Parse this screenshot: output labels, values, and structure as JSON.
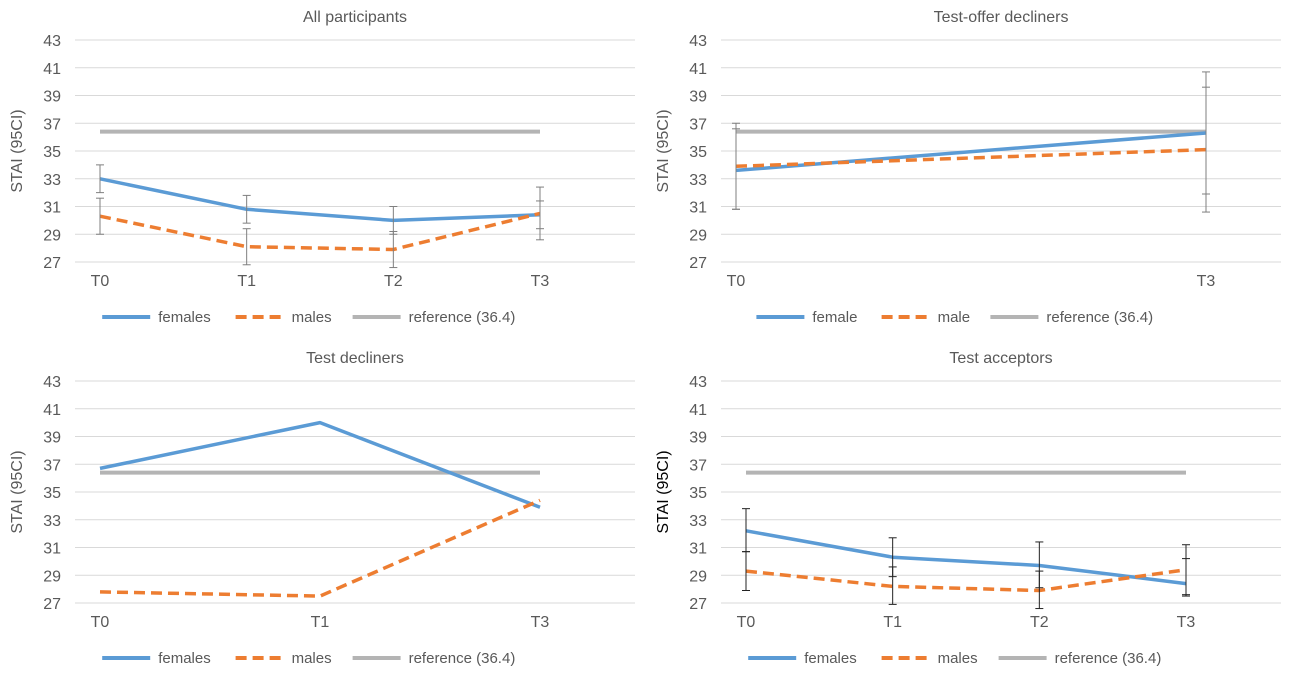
{
  "chart_data": [
    {
      "type": "line",
      "title": "All participants",
      "ylabel": "STAI (95CI)",
      "xlabel": "",
      "categories": [
        "T0",
        "T1",
        "T2",
        "T3"
      ],
      "ylim": [
        27,
        43
      ],
      "yticks": [
        "27",
        "29",
        "31",
        "33",
        "35",
        "37",
        "39",
        "41",
        "43"
      ],
      "grid": true,
      "legend_position": "bottom",
      "series": [
        {
          "name": "females",
          "color": "#5b9bd5",
          "dash": "solid",
          "values": [
            33.0,
            30.8,
            30.0,
            30.4
          ],
          "error_low": [
            32.0,
            29.8,
            29.0,
            29.4
          ],
          "error_high": [
            34.0,
            31.8,
            31.0,
            31.4
          ]
        },
        {
          "name": "males",
          "color": "#ed7d31",
          "dash": "dashed",
          "values": [
            30.3,
            28.1,
            27.9,
            30.5
          ],
          "error_low": [
            29.0,
            26.8,
            26.6,
            28.6
          ],
          "error_high": [
            31.6,
            29.4,
            29.2,
            32.4
          ]
        },
        {
          "name": "reference (36.4)",
          "color": "#b4b4b4",
          "dash": "solid",
          "values": [
            36.4,
            36.4,
            36.4,
            36.4
          ]
        }
      ]
    },
    {
      "type": "line",
      "title": "Test-offer decliners",
      "ylabel": "STAI (95CI)",
      "xlabel": "",
      "categories": [
        "T0",
        "T3"
      ],
      "ylim": [
        27,
        43
      ],
      "yticks": [
        "27",
        "29",
        "31",
        "33",
        "35",
        "37",
        "39",
        "41",
        "43"
      ],
      "grid": true,
      "legend_position": "bottom",
      "series": [
        {
          "name": "female",
          "color": "#5b9bd5",
          "dash": "solid",
          "values": [
            33.6,
            36.3
          ],
          "error_low": [
            30.8,
            31.9
          ],
          "error_high": [
            37.0,
            40.7
          ]
        },
        {
          "name": "male",
          "color": "#ed7d31",
          "dash": "dashed",
          "values": [
            33.9,
            35.1
          ],
          "error_low": [
            30.8,
            30.6
          ],
          "error_high": [
            36.6,
            39.6
          ]
        },
        {
          "name": "reference (36.4)",
          "color": "#b4b4b4",
          "dash": "solid",
          "values": [
            36.4,
            36.4
          ]
        }
      ]
    },
    {
      "type": "line",
      "title": "Test decliners",
      "ylabel": "STAI (95CI)",
      "xlabel": "",
      "categories": [
        "T0",
        "T1",
        "T3"
      ],
      "ylim": [
        27,
        43
      ],
      "yticks": [
        "27",
        "29",
        "31",
        "33",
        "35",
        "37",
        "39",
        "41",
        "43"
      ],
      "grid": true,
      "legend_position": "bottom",
      "series": [
        {
          "name": "females",
          "color": "#5b9bd5",
          "dash": "solid",
          "values": [
            36.7,
            40.0,
            33.9
          ]
        },
        {
          "name": "males",
          "color": "#ed7d31",
          "dash": "dashed",
          "values": [
            27.8,
            27.5,
            34.4
          ]
        },
        {
          "name": "reference (36.4)",
          "color": "#b4b4b4",
          "dash": "solid",
          "values": [
            36.4,
            36.4,
            36.4
          ]
        }
      ]
    },
    {
      "type": "line",
      "title": "Test acceptors",
      "ylabel": "STAI (95CI)",
      "xlabel": "",
      "categories": [
        "T0",
        "T1",
        "T2",
        "T3"
      ],
      "ylim": [
        27,
        43
      ],
      "yticks": [
        "27",
        "29",
        "31",
        "33",
        "35",
        "37",
        "39",
        "41",
        "43"
      ],
      "grid": true,
      "legend_position": "bottom",
      "series": [
        {
          "name": "females",
          "color": "#5b9bd5",
          "dash": "solid",
          "values": [
            32.2,
            30.3,
            29.7,
            28.4
          ],
          "error_low": [
            30.7,
            28.9,
            28.1,
            27.5
          ],
          "error_high": [
            33.8,
            31.7,
            31.4,
            30.2
          ]
        },
        {
          "name": "males",
          "color": "#ed7d31",
          "dash": "dashed",
          "values": [
            29.3,
            28.2,
            27.9,
            29.4
          ],
          "error_low": [
            27.9,
            26.9,
            26.6,
            27.6
          ],
          "error_high": [
            30.7,
            29.6,
            29.3,
            31.2
          ]
        },
        {
          "name": "reference (36.4)",
          "color": "#b4b4b4",
          "dash": "solid",
          "values": [
            36.4,
            36.4,
            36.4,
            36.4
          ]
        }
      ]
    }
  ]
}
